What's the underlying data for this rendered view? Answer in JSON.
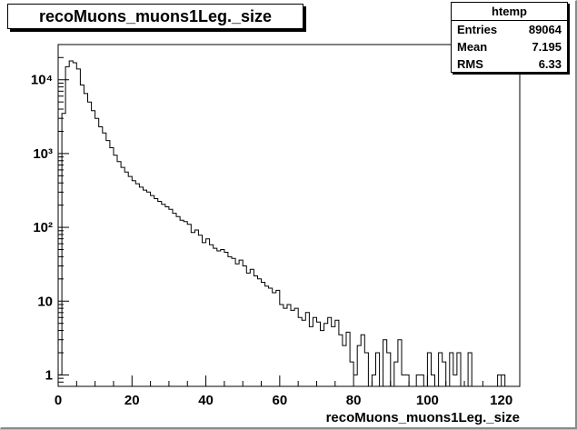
{
  "title": "recoMuons_muons1Leg._size",
  "stats": {
    "name": "htemp",
    "rows": [
      {
        "label": "Entries",
        "value": "89064"
      },
      {
        "label": "Mean",
        "value": "7.195"
      },
      {
        "label": "RMS",
        "value": "6.33"
      }
    ]
  },
  "chart_data": {
    "type": "bar",
    "title": "recoMuons_muons1Leg._size",
    "xlabel": "recoMuons_muons1Leg._size",
    "ylabel": "",
    "y_scale": "log",
    "xlim": [
      0,
      125
    ],
    "ylim": [
      0.7,
      30000
    ],
    "bin_width": 1,
    "x_ticks": [
      0,
      20,
      40,
      60,
      80,
      100,
      120
    ],
    "y_ticks": [
      {
        "value": 1,
        "label": "1"
      },
      {
        "value": 10,
        "label": "10"
      },
      {
        "value": 100,
        "label": "10²"
      },
      {
        "value": 1000,
        "label": "10³"
      },
      {
        "value": 10000,
        "label": "10⁴"
      }
    ],
    "bin_edges_start": 0,
    "series": [
      {
        "values": [
          1,
          3500,
          15000,
          18000,
          17000,
          14000,
          8500,
          6500,
          5000,
          3800,
          3000,
          2300,
          1900,
          1500,
          1200,
          950,
          780,
          650,
          560,
          490,
          430,
          390,
          350,
          320,
          300,
          270,
          245,
          225,
          205,
          190,
          175,
          155,
          140,
          125,
          120,
          110,
          85,
          92,
          78,
          62,
          70,
          58,
          52,
          48,
          50,
          46,
          40,
          38,
          32,
          36,
          30,
          24,
          27,
          22,
          20,
          18,
          16,
          15,
          13,
          14,
          9,
          8,
          9,
          7.5,
          8,
          6,
          5.5,
          7,
          4.5,
          6,
          5.2,
          4,
          5,
          6,
          4.5,
          5.5,
          3.5,
          2.5,
          3.8,
          1.5,
          1,
          2.5,
          3.5,
          2,
          0.7,
          1,
          2,
          0.7,
          3,
          2,
          0.7,
          1.5,
          3,
          1,
          1,
          0.7,
          0.7,
          1,
          1,
          0.7,
          2,
          1,
          0.7,
          2,
          1.5,
          0.7,
          2,
          1,
          2,
          0.7,
          0.7,
          2,
          0.7,
          0.7,
          0.7,
          0.7,
          0.7,
          0.7,
          0.7,
          1,
          1
        ]
      }
    ]
  }
}
